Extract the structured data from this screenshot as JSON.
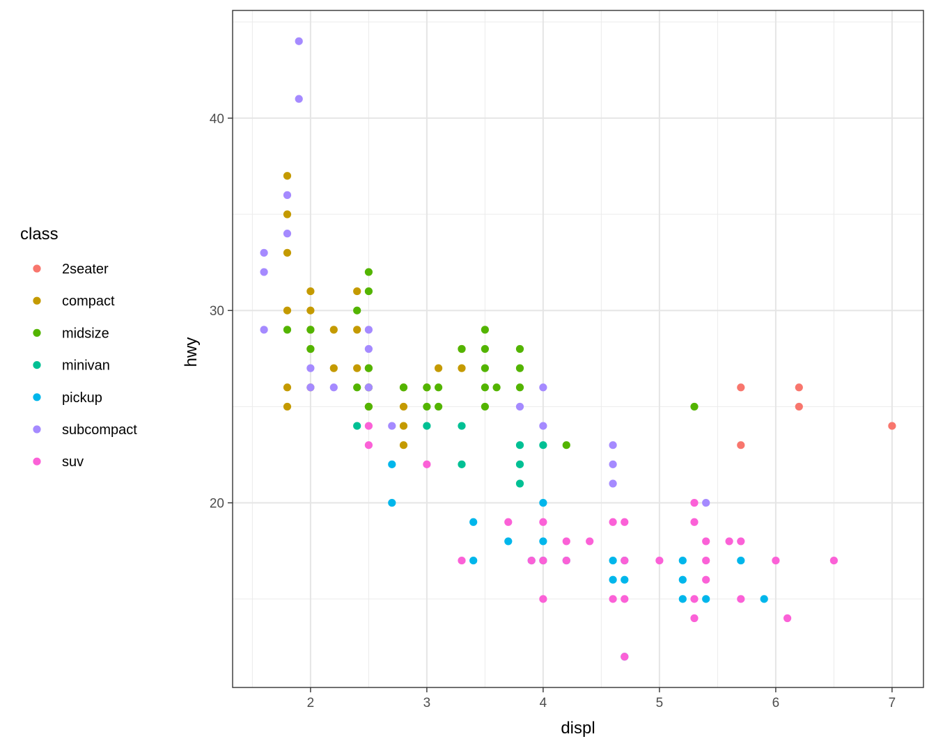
{
  "chart_data": {
    "type": "scatter",
    "xlabel": "displ",
    "ylabel": "hwy",
    "xlim": [
      1.33,
      7.27
    ],
    "ylim": [
      10.4,
      45.6
    ],
    "x_ticks": [
      2,
      3,
      4,
      5,
      6,
      7
    ],
    "y_ticks": [
      20,
      30,
      40
    ],
    "x_tick_labels": [
      "2",
      "3",
      "4",
      "5",
      "6",
      "7"
    ],
    "y_tick_labels": [
      "20",
      "30",
      "40"
    ],
    "grid": true,
    "legend": {
      "title": "class",
      "position": "left"
    },
    "series": [
      {
        "name": "2seater",
        "color": "#F8766D",
        "points": [
          [
            5.7,
            26
          ],
          [
            5.7,
            23
          ],
          [
            6.2,
            26
          ],
          [
            6.2,
            25
          ],
          [
            7.0,
            24
          ]
        ]
      },
      {
        "name": "compact",
        "color": "#C49A00",
        "points": [
          [
            1.8,
            37
          ],
          [
            1.8,
            35
          ],
          [
            1.8,
            33
          ],
          [
            1.8,
            30
          ],
          [
            1.8,
            26
          ],
          [
            1.8,
            25
          ],
          [
            2.0,
            31
          ],
          [
            2.0,
            30
          ],
          [
            2.0,
            29
          ],
          [
            2.0,
            28
          ],
          [
            2.0,
            26
          ],
          [
            2.2,
            29
          ],
          [
            2.2,
            27
          ],
          [
            2.4,
            31
          ],
          [
            2.4,
            29
          ],
          [
            2.4,
            27
          ],
          [
            2.5,
            27
          ],
          [
            2.5,
            25
          ],
          [
            2.5,
            26
          ],
          [
            2.8,
            26
          ],
          [
            2.8,
            25
          ],
          [
            2.8,
            24
          ],
          [
            2.8,
            23
          ],
          [
            3.0,
            26
          ],
          [
            3.1,
            27
          ],
          [
            3.3,
            28
          ],
          [
            3.3,
            27
          ]
        ]
      },
      {
        "name": "midsize",
        "color": "#53B400",
        "points": [
          [
            1.8,
            29
          ],
          [
            2.0,
            29
          ],
          [
            2.0,
            28
          ],
          [
            2.4,
            30
          ],
          [
            2.4,
            26
          ],
          [
            2.5,
            32
          ],
          [
            2.5,
            31
          ],
          [
            2.5,
            27
          ],
          [
            2.5,
            26
          ],
          [
            2.5,
            25
          ],
          [
            2.8,
            26
          ],
          [
            3.0,
            26
          ],
          [
            3.0,
            25
          ],
          [
            3.1,
            26
          ],
          [
            3.1,
            25
          ],
          [
            3.3,
            28
          ],
          [
            3.5,
            29
          ],
          [
            3.5,
            28
          ],
          [
            3.5,
            27
          ],
          [
            3.5,
            26
          ],
          [
            3.5,
            25
          ],
          [
            3.6,
            26
          ],
          [
            3.8,
            28
          ],
          [
            3.8,
            27
          ],
          [
            3.8,
            26
          ],
          [
            4.2,
            23
          ],
          [
            5.3,
            25
          ]
        ]
      },
      {
        "name": "minivan",
        "color": "#00C094",
        "points": [
          [
            2.4,
            24
          ],
          [
            3.0,
            24
          ],
          [
            3.3,
            24
          ],
          [
            3.3,
            22
          ],
          [
            3.8,
            23
          ],
          [
            3.8,
            22
          ],
          [
            3.8,
            21
          ],
          [
            4.0,
            23
          ]
        ]
      },
      {
        "name": "pickup",
        "color": "#00B6EB",
        "points": [
          [
            2.7,
            22
          ],
          [
            2.7,
            20
          ],
          [
            3.4,
            19
          ],
          [
            3.4,
            17
          ],
          [
            3.7,
            18
          ],
          [
            3.9,
            17
          ],
          [
            4.0,
            20
          ],
          [
            4.0,
            18
          ],
          [
            4.0,
            17
          ],
          [
            4.2,
            17
          ],
          [
            4.6,
            17
          ],
          [
            4.6,
            16
          ],
          [
            4.7,
            17
          ],
          [
            4.7,
            16
          ],
          [
            4.7,
            12
          ],
          [
            5.2,
            17
          ],
          [
            5.2,
            16
          ],
          [
            5.2,
            15
          ],
          [
            5.4,
            15
          ],
          [
            5.7,
            17
          ],
          [
            5.9,
            15
          ]
        ]
      },
      {
        "name": "subcompact",
        "color": "#A58AFF",
        "points": [
          [
            1.6,
            33
          ],
          [
            1.6,
            32
          ],
          [
            1.6,
            29
          ],
          [
            1.8,
            36
          ],
          [
            1.8,
            34
          ],
          [
            1.9,
            44
          ],
          [
            1.9,
            41
          ],
          [
            2.0,
            27
          ],
          [
            2.0,
            26
          ],
          [
            2.2,
            26
          ],
          [
            2.5,
            29
          ],
          [
            2.5,
            28
          ],
          [
            2.5,
            26
          ],
          [
            2.7,
            24
          ],
          [
            3.8,
            25
          ],
          [
            4.0,
            26
          ],
          [
            4.0,
            24
          ],
          [
            4.6,
            23
          ],
          [
            4.6,
            22
          ],
          [
            4.6,
            21
          ],
          [
            5.4,
            20
          ]
        ]
      },
      {
        "name": "suv",
        "color": "#FB61D7",
        "points": [
          [
            2.5,
            24
          ],
          [
            2.5,
            23
          ],
          [
            3.0,
            22
          ],
          [
            3.3,
            17
          ],
          [
            3.7,
            19
          ],
          [
            3.9,
            17
          ],
          [
            4.0,
            19
          ],
          [
            4.0,
            17
          ],
          [
            4.0,
            15
          ],
          [
            4.2,
            17
          ],
          [
            4.2,
            18
          ],
          [
            4.4,
            18
          ],
          [
            4.6,
            19
          ],
          [
            4.6,
            15
          ],
          [
            4.7,
            19
          ],
          [
            4.7,
            17
          ],
          [
            4.7,
            15
          ],
          [
            4.7,
            12
          ],
          [
            5.0,
            17
          ],
          [
            5.3,
            20
          ],
          [
            5.3,
            19
          ],
          [
            5.3,
            15
          ],
          [
            5.3,
            14
          ],
          [
            5.4,
            18
          ],
          [
            5.4,
            17
          ],
          [
            5.4,
            16
          ],
          [
            5.6,
            18
          ],
          [
            5.7,
            18
          ],
          [
            5.7,
            15
          ],
          [
            6.0,
            17
          ],
          [
            6.1,
            14
          ],
          [
            6.5,
            17
          ]
        ]
      }
    ]
  }
}
